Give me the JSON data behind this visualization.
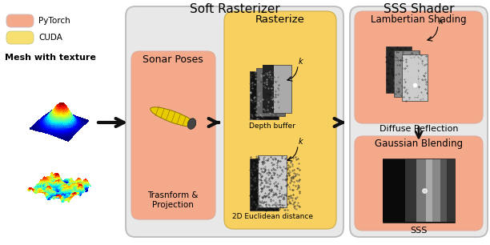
{
  "fig_width": 6.12,
  "fig_height": 3.06,
  "bg_color": "#ffffff",
  "pytorch_color": "#F5A98B",
  "cuda_color": "#F8E070",
  "box_outer_color": "#E8E8E8",
  "box_sonar_color": "#F5A98B",
  "box_rast_color": "#F8D060",
  "box_sss_color": "#E8E8E8",
  "box_lamb_color": "#F5A98B",
  "box_gauss_color": "#F5A98B",
  "title_soft_rast": "Soft Rasterizer",
  "title_sss": "SSS Shader",
  "label_sonar": "Sonar Poses",
  "label_transform": "Trasnform &\nProjection",
  "label_rasterize": "Rasterize",
  "label_depth": "Depth buffer",
  "label_2d": "2D Euclidean distance",
  "label_lambertian": "Lambertian Shading",
  "label_diffuse": "Diffuse Reflection",
  "label_gaussian": "Gaussian Blending",
  "label_sss": "SSS",
  "label_mesh": "Mesh with texture",
  "label_pytorch": "PyTorch",
  "label_cuda": "CUDA",
  "edge_gray": "#AAAAAA",
  "arrow_color": "#111111"
}
